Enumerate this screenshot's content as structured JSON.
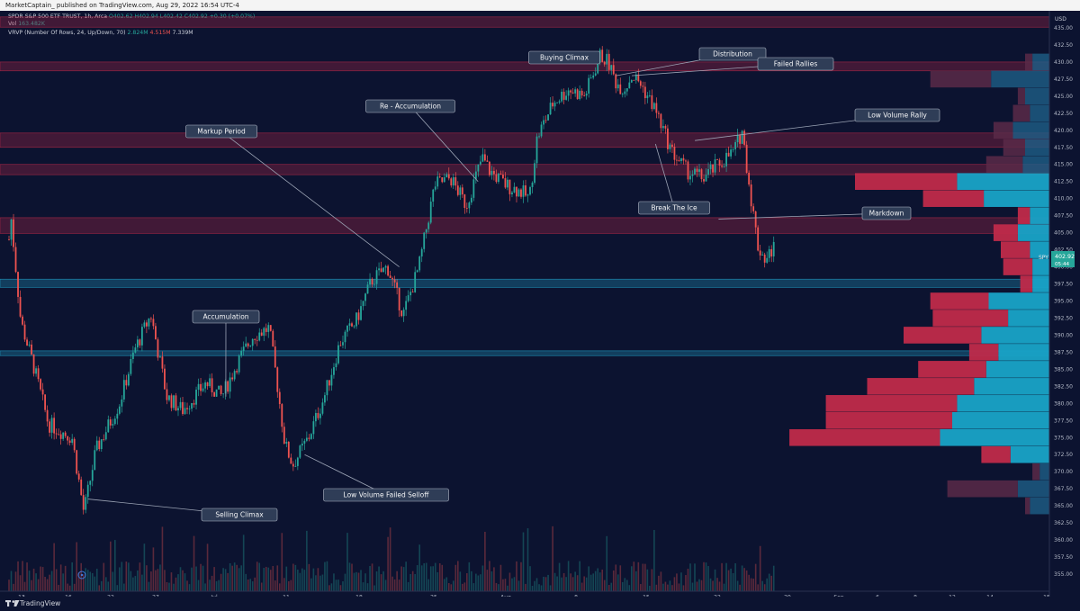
{
  "header": {
    "published": "MarketCaptain_ published on TradingView.com, Aug 29, 2022 16:54 UTC-4"
  },
  "legend": {
    "symbol_line": "SPDR S&P 500 ETF TRUST, 1h, Arca",
    "ohlc": "O402.62  H402.94  L402.42  C402.92  +0.30 (+0.07%)",
    "vol_label": "Vol",
    "vol_value": "163.482K",
    "vrvp_label": "VRVP (Number Of Rows, 24, Up/Down, 70)",
    "vrvp_up": "2.824M",
    "vrvp_down": "4.515M",
    "vrvp_total": "7.339M"
  },
  "footer": {
    "brand": "TradingView"
  },
  "price_tag": {
    "ticker": "SPY",
    "price": "402.92",
    "countdown": "05:44"
  },
  "colors": {
    "background": "#0c1330",
    "up": "#26a69a",
    "down": "#ef5350",
    "zone_red": "#b02847",
    "zone_blue": "#1f9bc2"
  },
  "chart_data": {
    "type": "candlestick",
    "currency": "USD",
    "ylim": [
      352.5,
      437.5
    ],
    "yticks": [
      355,
      357.5,
      360,
      362.5,
      365,
      367.5,
      370,
      372.5,
      375,
      377.5,
      380,
      382.5,
      385,
      387.5,
      390,
      392.5,
      395,
      397.5,
      400,
      402.5,
      405,
      407.5,
      410,
      412.5,
      415,
      417.5,
      420,
      422.5,
      425,
      427.5,
      430,
      432.5,
      435
    ],
    "xlabels": [
      "13",
      "16",
      "22",
      "27",
      "Jul",
      "11",
      "18",
      "25",
      "Aug",
      "8",
      "15",
      "22",
      "29",
      "Sep",
      "6",
      "8",
      "12",
      "14",
      "15"
    ],
    "trajectory": [
      [
        0,
        404
      ],
      [
        0.2,
        408
      ],
      [
        1.5,
        392
      ],
      [
        3,
        386
      ],
      [
        5,
        377
      ],
      [
        8,
        375
      ],
      [
        9.5,
        364
      ],
      [
        11,
        373
      ],
      [
        14,
        380
      ],
      [
        16,
        388
      ],
      [
        18,
        393
      ],
      [
        20,
        381
      ],
      [
        22,
        379
      ],
      [
        25,
        383
      ],
      [
        27,
        381
      ],
      [
        29,
        386
      ],
      [
        31,
        390
      ],
      [
        33,
        391
      ],
      [
        34,
        383
      ],
      [
        35,
        374
      ],
      [
        36,
        371
      ],
      [
        38,
        375
      ],
      [
        40,
        381
      ],
      [
        42,
        389
      ],
      [
        44,
        392
      ],
      [
        46,
        398
      ],
      [
        48,
        400
      ],
      [
        50,
        393
      ],
      [
        52,
        400
      ],
      [
        54,
        412
      ],
      [
        56,
        413
      ],
      [
        58,
        409
      ],
      [
        60,
        416
      ],
      [
        61,
        414
      ],
      [
        63,
        412
      ],
      [
        65,
        411
      ],
      [
        66,
        410
      ],
      [
        67,
        419
      ],
      [
        69,
        424
      ],
      [
        71,
        426
      ],
      [
        73,
        425
      ],
      [
        75,
        431
      ],
      [
        76,
        430
      ],
      [
        77,
        427
      ],
      [
        78,
        426
      ],
      [
        79,
        428
      ],
      [
        80,
        427
      ],
      [
        82,
        423
      ],
      [
        84,
        417
      ],
      [
        86,
        414
      ],
      [
        88,
        413
      ],
      [
        90,
        415
      ],
      [
        92,
        417
      ],
      [
        93,
        420
      ],
      [
        94,
        411
      ],
      [
        95,
        403
      ],
      [
        96,
        401
      ],
      [
        97,
        403
      ]
    ],
    "zones": [
      {
        "color": "red",
        "low": 435.1,
        "high": 436.6
      },
      {
        "color": "red",
        "low": 428.7,
        "high": 430.0
      },
      {
        "color": "red",
        "low": 417.5,
        "high": 419.6
      },
      {
        "color": "red",
        "low": 413.5,
        "high": 415.0
      },
      {
        "color": "red",
        "low": 404.9,
        "high": 407.2
      },
      {
        "color": "blue",
        "low": 397.0,
        "high": 398.2
      },
      {
        "color": "blue",
        "low": 387.0,
        "high": 387.7
      }
    ],
    "volume_profile": [
      {
        "price": 430.0,
        "up": 0.07,
        "down": 0.03
      },
      {
        "price": 427.5,
        "up": 0.24,
        "down": 0.25
      },
      {
        "price": 425.0,
        "up": 0.1,
        "down": 0.03
      },
      {
        "price": 422.5,
        "up": 0.08,
        "down": 0.07
      },
      {
        "price": 420.0,
        "up": 0.15,
        "down": 0.08
      },
      {
        "price": 417.5,
        "up": 0.1,
        "down": 0.09
      },
      {
        "price": 415.0,
        "up": 0.11,
        "down": 0.15
      },
      {
        "price": 412.5,
        "up": 0.38,
        "down": 0.42
      },
      {
        "price": 410.0,
        "up": 0.27,
        "down": 0.25
      },
      {
        "price": 407.5,
        "up": 0.08,
        "down": 0.05
      },
      {
        "price": 405.0,
        "up": 0.13,
        "down": 0.1
      },
      {
        "price": 402.5,
        "up": 0.08,
        "down": 0.12
      },
      {
        "price": 400.0,
        "up": 0.07,
        "down": 0.12
      },
      {
        "price": 397.5,
        "up": 0.07,
        "down": 0.05
      },
      {
        "price": 395.0,
        "up": 0.25,
        "down": 0.24
      },
      {
        "price": 392.5,
        "up": 0.17,
        "down": 0.31
      },
      {
        "price": 390.0,
        "up": 0.28,
        "down": 0.32
      },
      {
        "price": 387.5,
        "up": 0.21,
        "down": 0.12
      },
      {
        "price": 385.0,
        "up": 0.26,
        "down": 0.28
      },
      {
        "price": 382.5,
        "up": 0.31,
        "down": 0.44
      },
      {
        "price": 380.0,
        "up": 0.38,
        "down": 0.54
      },
      {
        "price": 377.5,
        "up": 0.4,
        "down": 0.52
      },
      {
        "price": 375.0,
        "up": 0.45,
        "down": 0.62
      },
      {
        "price": 372.5,
        "up": 0.16,
        "down": 0.12
      },
      {
        "price": 370.0,
        "up": 0.04,
        "down": 0.03
      },
      {
        "price": 367.5,
        "up": 0.13,
        "down": 0.29
      },
      {
        "price": 365.0,
        "up": 0.08,
        "down": 0.02
      }
    ],
    "annotations": [
      {
        "text": "Buying Climax",
        "x": 74,
        "y": 430.5
      },
      {
        "text": "Distribution",
        "x": 77,
        "y": 428
      },
      {
        "text": "Failed Rallies",
        "x": 79,
        "y": 428
      },
      {
        "text": "Re - Accumulation",
        "x": 59.5,
        "y": 412.5
      },
      {
        "text": "Markup Period",
        "x": 49.5,
        "y": 400
      },
      {
        "text": "Low Volume Rally",
        "x": 87,
        "y": 418.5
      },
      {
        "text": "Break The Ice",
        "x": 82,
        "y": 418
      },
      {
        "text": "Markdown",
        "x": 90,
        "y": 407
      },
      {
        "text": "Accumulation",
        "x": 27.5,
        "y": 381
      },
      {
        "text": "Low Volume Failed Selloff",
        "x": 37.5,
        "y": 372.5
      },
      {
        "text": "Selling Climax",
        "x": 10,
        "y": 366
      }
    ]
  }
}
